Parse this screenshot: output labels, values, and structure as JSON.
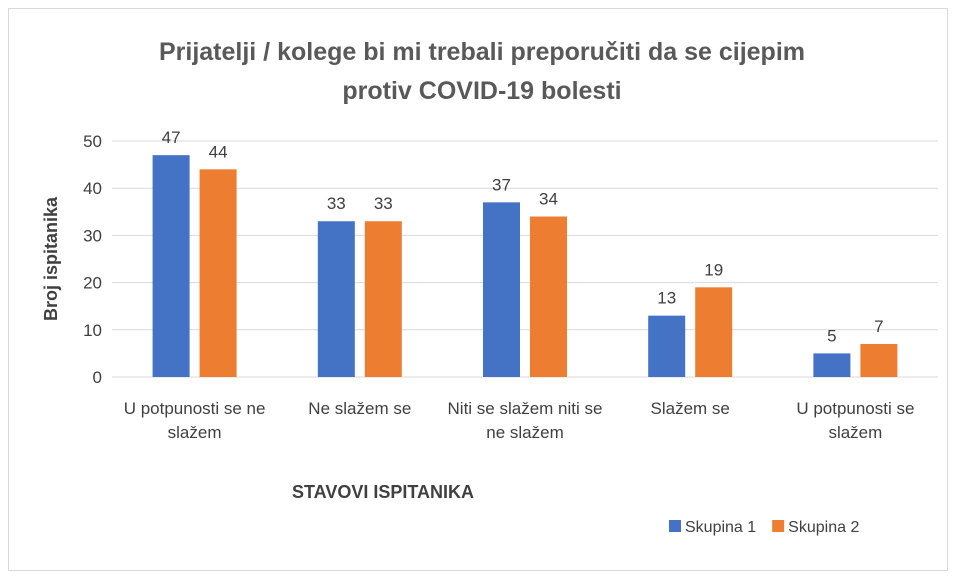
{
  "chart_data": {
    "type": "bar",
    "title": "Prijatelji / kolege bi mi trebali preporučiti da se cijepim protiv COVID-19 bolesti",
    "title_lines": [
      "Prijatelji / kolege bi mi trebali preporučiti da se cijepim",
      "protiv COVID-19 bolesti"
    ],
    "x_label": "STAVOVI ISPITANIKA",
    "y_label": "Broj ispitanika",
    "categories": [
      "U potpunosti se ne slažem",
      "Ne slažem se",
      "Niti se slažem niti se ne slažem",
      "Slažem se",
      "U potpunosti se slažem"
    ],
    "series": [
      {
        "name": "Skupina 1",
        "color": "#4472c4",
        "values": [
          47,
          33,
          37,
          13,
          5
        ]
      },
      {
        "name": "Skupina 2",
        "color": "#ed7d31",
        "values": [
          44,
          33,
          34,
          19,
          7
        ]
      }
    ],
    "ylim": [
      0,
      50
    ],
    "yticks": [
      0,
      10,
      20,
      30,
      40,
      50
    ],
    "grid": true,
    "legend": "bottom-right"
  }
}
